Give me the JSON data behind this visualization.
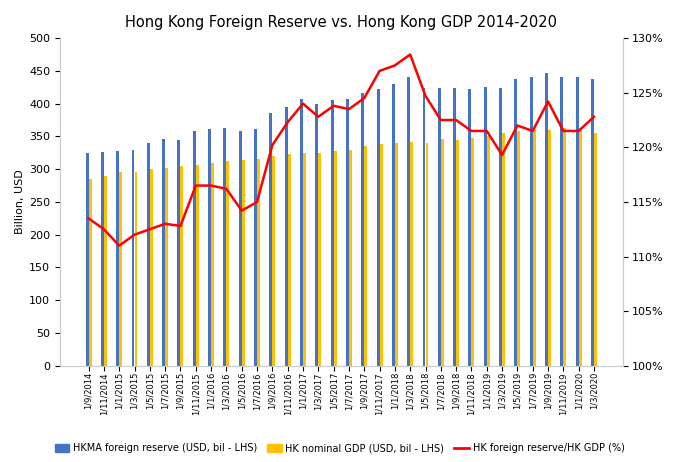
{
  "title": "Hong Kong Foreign Reserve vs. Hong Kong GDP 2014-2020",
  "ylabel_left": "Billion, USD",
  "x_labels": [
    "1/9/2014",
    "1/11/2014",
    "1/1/2015",
    "1/3/2015",
    "1/5/2015",
    "1/7/2015",
    "1/9/2015",
    "1/11/2015",
    "1/1/2016",
    "1/3/2016",
    "1/5/2016",
    "1/7/2016",
    "1/9/2016",
    "1/11/2016",
    "1/1/2017",
    "1/3/2017",
    "1/5/2017",
    "1/7/2017",
    "1/9/2017",
    "1/11/2017",
    "1/1/2018",
    "1/3/2018",
    "1/5/2018",
    "1/7/2018",
    "1/9/2018",
    "1/11/2018",
    "1/1/2019",
    "1/3/2019",
    "1/5/2019",
    "1/7/2019",
    "1/9/2019",
    "1/11/2019",
    "1/1/2020",
    "1/3/2020"
  ],
  "hkma_reserve": [
    325,
    326,
    328,
    330,
    340,
    346,
    344,
    358,
    361,
    363,
    359,
    362,
    385,
    395,
    407,
    399,
    406,
    407,
    416,
    423,
    430,
    440,
    424,
    424,
    424,
    423,
    425,
    424,
    437,
    440,
    447,
    441,
    441,
    437
  ],
  "hk_gdp": [
    285,
    289,
    295,
    295,
    301,
    302,
    305,
    306,
    310,
    312,
    314,
    315,
    320,
    323,
    325,
    325,
    328,
    330,
    335,
    338,
    340,
    342,
    340,
    346,
    345,
    348,
    350,
    355,
    358,
    362,
    360,
    363,
    363,
    355
  ],
  "ratio": [
    113.5,
    112.5,
    111.0,
    112.0,
    112.5,
    113.0,
    112.8,
    116.5,
    116.5,
    116.2,
    114.2,
    115.0,
    120.2,
    122.3,
    124.0,
    122.8,
    123.8,
    123.5,
    124.5,
    127.0,
    127.5,
    128.5,
    124.7,
    122.5,
    122.5,
    121.5,
    121.5,
    119.3,
    122.0,
    121.5,
    124.2,
    121.5,
    121.5,
    122.8
  ],
  "bar_color_blue": "#4472C4",
  "bar_color_gold": "#FFC000",
  "line_color_red": "#FF0000",
  "background_color": "#FFFFFF",
  "ylim_left": [
    0,
    500
  ],
  "ylim_right": [
    100,
    130
  ],
  "yticks_left": [
    0,
    50,
    100,
    150,
    200,
    250,
    300,
    350,
    400,
    450,
    500
  ],
  "yticks_right_vals": [
    100,
    105,
    110,
    115,
    120,
    125,
    130
  ],
  "yticks_right_labels": [
    "100%",
    "105%",
    "110%",
    "115%",
    "120%",
    "125%",
    "130%"
  ],
  "legend_labels": [
    "HKMA foreign reserve (USD, bil - LHS)",
    "HK nominal GDP (USD, bil - LHS)",
    "HK foreign reserve/HK GDP (%)"
  ]
}
